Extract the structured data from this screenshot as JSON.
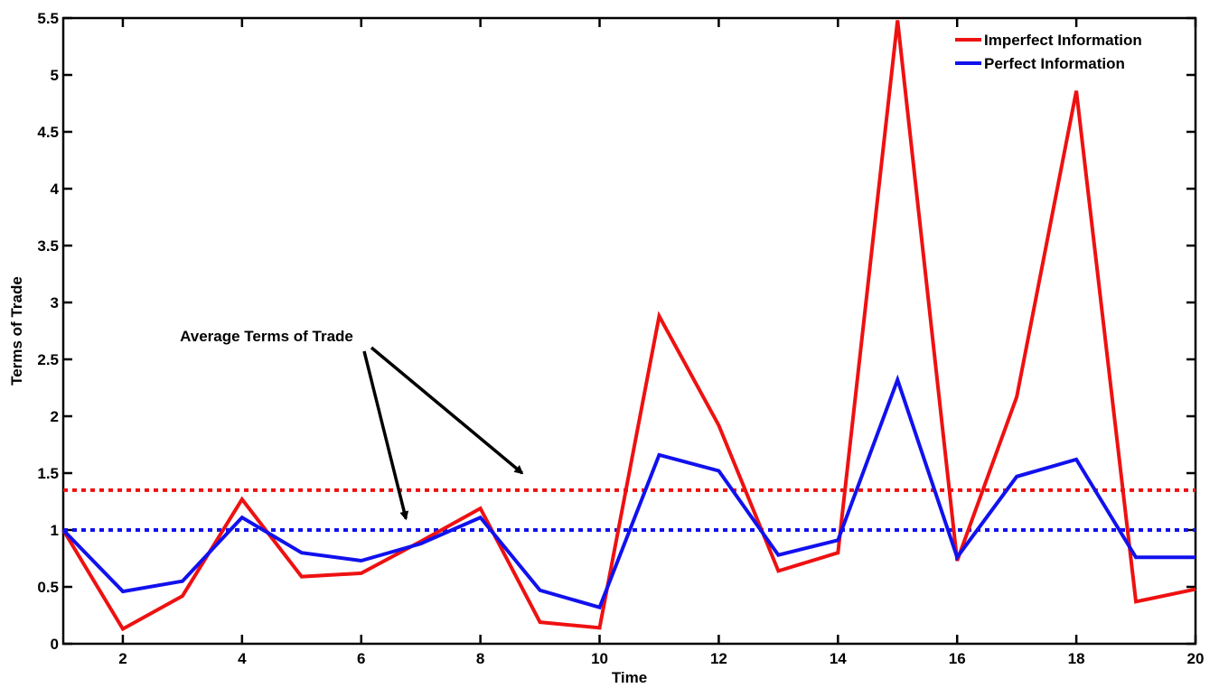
{
  "chart_data": {
    "type": "line",
    "title": "",
    "xlabel": "Time",
    "ylabel": "Terms of Trade",
    "xlim": [
      1,
      20
    ],
    "ylim": [
      0,
      5.5
    ],
    "xticks": [
      2,
      4,
      6,
      8,
      10,
      12,
      14,
      16,
      18,
      20
    ],
    "yticks": [
      0,
      0.5,
      1,
      1.5,
      2,
      2.5,
      3,
      3.5,
      4,
      4.5,
      5,
      5.5
    ],
    "x": [
      1,
      2,
      3,
      4,
      5,
      6,
      7,
      8,
      9,
      10,
      11,
      12,
      13,
      14,
      15,
      16,
      17,
      18,
      19,
      20
    ],
    "series": [
      {
        "name": "Imperfect Information",
        "color": "#ee1111",
        "values": [
          1.0,
          0.13,
          0.42,
          1.27,
          0.59,
          0.62,
          0.9,
          1.19,
          0.19,
          0.14,
          2.88,
          1.92,
          0.64,
          0.8,
          5.48,
          0.73,
          2.17,
          4.86,
          0.37,
          0.48
        ]
      },
      {
        "name": "Perfect Information",
        "color": "#1111ee",
        "values": [
          1.0,
          0.46,
          0.55,
          1.11,
          0.8,
          0.73,
          0.88,
          1.11,
          0.47,
          0.32,
          1.66,
          1.52,
          0.78,
          0.91,
          2.32,
          0.76,
          1.47,
          1.62,
          0.76,
          0.76
        ]
      }
    ],
    "averages": [
      {
        "series": "Imperfect Information",
        "value": 1.35,
        "color": "#ee1111",
        "style": "dotted"
      },
      {
        "series": "Perfect Information",
        "value": 1.0,
        "color": "#1111ee",
        "style": "dotted"
      }
    ],
    "annotation": {
      "text": "Average Terms of Trade",
      "arrow_targets": [
        {
          "x": 6.75,
          "y": 1.1
        },
        {
          "x": 8.7,
          "y": 1.5
        }
      ],
      "anchor": {
        "x": 5.5,
        "y": 2.6
      }
    },
    "legend": {
      "position": "top-right"
    },
    "grid": false
  }
}
